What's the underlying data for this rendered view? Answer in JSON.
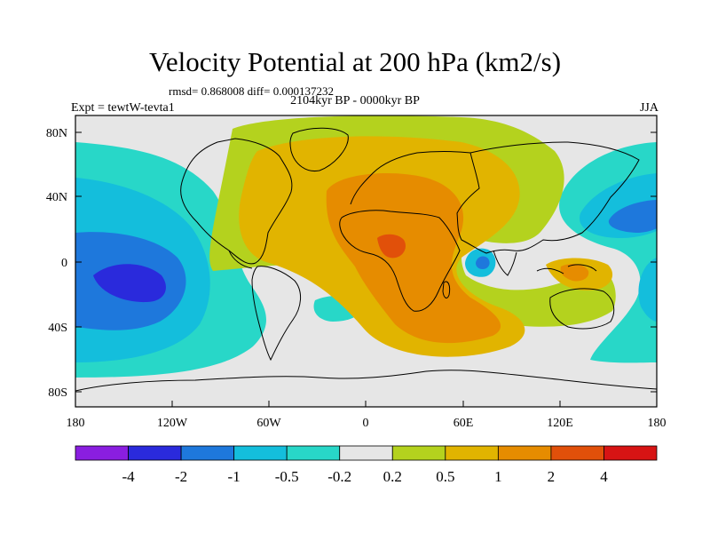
{
  "title": "Velocity Potential at 200 hPa (km2/s)",
  "stats_line": "rmsd= 0.868008 diff= 0.000137232",
  "subtitle": "2104kyr BP - 0000kyr BP",
  "experiment": "Expt = tewtW-tevta1",
  "season": "JJA",
  "axes": {
    "lat_ticks": [
      "80N",
      "40N",
      "0",
      "40S",
      "80S"
    ],
    "lon_ticks": [
      "180",
      "120W",
      "60W",
      "0",
      "60E",
      "120E",
      "180"
    ]
  },
  "colorbar": {
    "colors": [
      "#8a1ee0",
      "#2a2adc",
      "#1e78dc",
      "#14bedc",
      "#28d7c8",
      "#e6e6e6",
      "#b4d21e",
      "#e1b400",
      "#e68c00",
      "#e1500a",
      "#d71414"
    ],
    "labels": [
      "-4",
      "-2",
      "-1",
      "-0.5",
      "-0.2",
      "0.2",
      "0.5",
      "1",
      "2",
      "4"
    ]
  }
}
